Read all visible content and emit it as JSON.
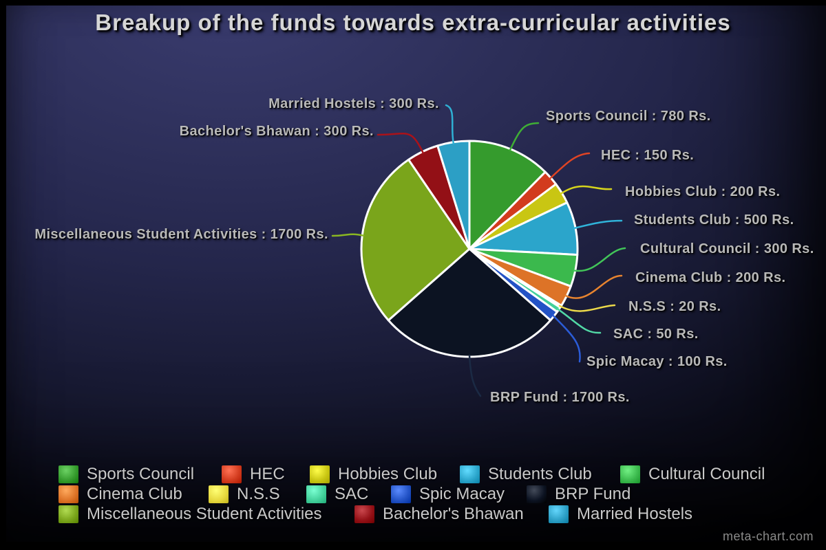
{
  "title": "Breakup of the funds towards extra-curricular activities",
  "watermark": "meta-chart.com",
  "chart_data": {
    "type": "pie",
    "title": "Breakup of the funds towards extra-curricular activities",
    "unit": "Rs.",
    "total": 6300,
    "start_angle_deg": 0,
    "direction": "clockwise",
    "legend_position": "bottom",
    "label_format": "{name} : {value} Rs.",
    "background_color": "#24264b",
    "slice_border_color": "#ffffff",
    "slices": [
      {
        "name": "Sports Council",
        "value": 780,
        "color": "#359b2d",
        "leader_color": "#3fae35"
      },
      {
        "name": "HEC",
        "value": 150,
        "color": "#d23b1e",
        "leader_color": "#e04424"
      },
      {
        "name": "Hobbies Club",
        "value": 200,
        "color": "#c9c613",
        "leader_color": "#d6d41c"
      },
      {
        "name": "Students Club",
        "value": 500,
        "color": "#2ba5cb",
        "leader_color": "#30b4da"
      },
      {
        "name": "Cultural Council",
        "value": 300,
        "color": "#3bb94d",
        "leader_color": "#42c659"
      },
      {
        "name": "Cinema Club",
        "value": 200,
        "color": "#dd7327",
        "leader_color": "#e8842f"
      },
      {
        "name": "N.S.S",
        "value": 20,
        "color": "#e6d83e",
        "leader_color": "#edda4a"
      },
      {
        "name": "SAC",
        "value": 50,
        "color": "#43d09b",
        "leader_color": "#52d9a6"
      },
      {
        "name": "Spic Macay",
        "value": 100,
        "color": "#2353c6",
        "leader_color": "#2b5cd8"
      },
      {
        "name": "BRP Fund",
        "value": 1700,
        "color": "#0c1322",
        "leader_color": "#1b2a44"
      },
      {
        "name": "Miscellaneous Student Activities",
        "value": 1700,
        "color": "#7aa51b",
        "leader_color": "#8ab722"
      },
      {
        "name": "Bachelor's Bhawan",
        "value": 300,
        "color": "#931016",
        "leader_color": "#ab1219"
      },
      {
        "name": "Married Hostels",
        "value": 300,
        "color": "#2c9fc5",
        "leader_color": "#2fb0d4"
      }
    ]
  }
}
